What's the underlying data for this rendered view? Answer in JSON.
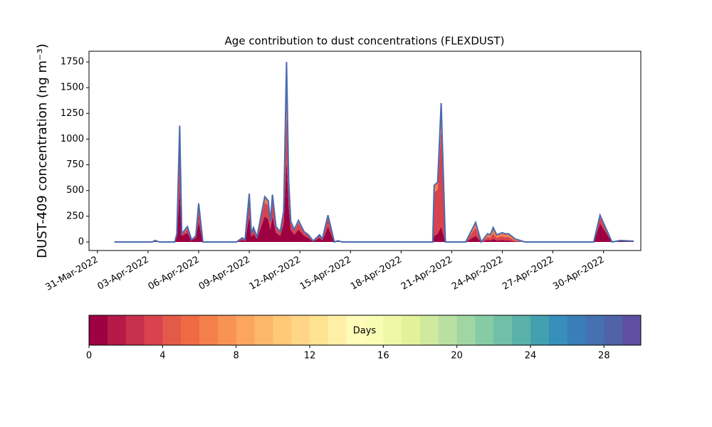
{
  "chart_data": [
    {
      "type": "stacked-area",
      "title": "Age contribution to dust concentrations (FLEXDUST)",
      "y_label": "DUST-409 concentration (ng m⁻³)",
      "x": [
        "2022-04-01T00:00",
        "2022-04-03T06:00",
        "2022-04-03T10:00",
        "2022-04-03T16:00",
        "2022-04-04T14:00",
        "2022-04-04T17:00",
        "2022-04-04T21:00",
        "2022-04-05T00:00",
        "2022-04-05T08:00",
        "2022-04-05T14:00",
        "2022-04-05T20:00",
        "2022-04-06T00:00",
        "2022-04-06T06:00",
        "2022-04-08T06:00",
        "2022-04-08T14:00",
        "2022-04-08T18:00",
        "2022-04-09T00:00",
        "2022-04-09T03:00",
        "2022-04-09T06:00",
        "2022-04-09T11:00",
        "2022-04-09T22:00",
        "2022-04-10T03:00",
        "2022-04-10T06:00",
        "2022-04-10T09:00",
        "2022-04-10T14:00",
        "2022-04-10T20:00",
        "2022-04-11T01:00",
        "2022-04-11T05:00",
        "2022-04-11T08:00",
        "2022-04-11T11:00",
        "2022-04-11T16:00",
        "2022-04-11T22:00",
        "2022-04-12T06:00",
        "2022-04-12T12:00",
        "2022-04-12T19:00",
        "2022-04-13T04:00",
        "2022-04-13T08:00",
        "2022-04-13T16:00",
        "2022-04-14T01:00",
        "2022-04-14T06:00",
        "2022-04-14T12:00",
        "2022-04-19T21:00",
        "2022-04-19T23:00",
        "2022-04-20T04:00",
        "2022-04-20T09:00",
        "2022-04-20T15:00",
        "2022-04-21T20:00",
        "2022-04-22T10:00",
        "2022-04-22T18:00",
        "2022-04-23T03:00",
        "2022-04-23T07:00",
        "2022-04-23T11:00",
        "2022-04-23T16:00",
        "2022-04-24T00:00",
        "2022-04-24T04:00",
        "2022-04-24T09:00",
        "2022-04-24T18:00",
        "2022-04-25T08:00",
        "2022-04-29T10:00",
        "2022-04-29T19:00",
        "2022-04-30T12:00",
        "2022-05-01T00:00",
        "2022-05-01T19:00"
      ],
      "series": [
        {
          "color": "#9e0142",
          "values": [
            0,
            0,
            8,
            0,
            0,
            60,
            500,
            60,
            90,
            15,
            40,
            200,
            0,
            0,
            20,
            10,
            250,
            50,
            80,
            30,
            250,
            220,
            120,
            250,
            90,
            60,
            180,
            800,
            350,
            120,
            70,
            120,
            60,
            40,
            5,
            40,
            15,
            150,
            0,
            6,
            0,
            0,
            60,
            80,
            150,
            0,
            0,
            60,
            0,
            20,
            15,
            30,
            15,
            20,
            15,
            15,
            5,
            0,
            0,
            180,
            0,
            8,
            4
          ]
        },
        {
          "color": "#d8434e",
          "values": [
            0,
            0,
            5,
            0,
            0,
            15,
            400,
            15,
            40,
            4,
            15,
            120,
            0,
            0,
            15,
            8,
            150,
            25,
            45,
            15,
            140,
            130,
            60,
            150,
            45,
            30,
            90,
            450,
            180,
            60,
            35,
            65,
            30,
            22,
            4,
            22,
            10,
            80,
            0,
            4,
            0,
            0,
            420,
            430,
            950,
            0,
            0,
            80,
            0,
            30,
            25,
            50,
            25,
            35,
            30,
            30,
            10,
            0,
            0,
            60,
            0,
            5,
            3
          ]
        },
        {
          "color": "#f57f4b",
          "values": [
            0,
            0,
            2,
            0,
            0,
            5,
            230,
            5,
            20,
            1,
            5,
            55,
            0,
            0,
            5,
            2,
            70,
            5,
            15,
            5,
            50,
            50,
            20,
            60,
            15,
            10,
            30,
            500,
            70,
            20,
            15,
            25,
            10,
            8,
            1,
            8,
            5,
            30,
            0,
            2,
            0,
            0,
            70,
            70,
            250,
            0,
            0,
            50,
            0,
            30,
            30,
            60,
            30,
            35,
            35,
            35,
            15,
            0,
            0,
            20,
            0,
            2,
            1
          ]
        }
      ],
      "outline_color": "#4a6bb0",
      "xlim": [
        "2022-03-30T12:00",
        "2022-05-02T05:00"
      ],
      "xticks": [
        {
          "value": "2022-03-31T00:00",
          "label": "31-Mar-2022"
        },
        {
          "value": "2022-04-03T00:00",
          "label": "03-Apr-2022"
        },
        {
          "value": "2022-04-06T00:00",
          "label": "06-Apr-2022"
        },
        {
          "value": "2022-04-09T00:00",
          "label": "09-Apr-2022"
        },
        {
          "value": "2022-04-12T00:00",
          "label": "12-Apr-2022"
        },
        {
          "value": "2022-04-15T00:00",
          "label": "15-Apr-2022"
        },
        {
          "value": "2022-04-18T00:00",
          "label": "18-Apr-2022"
        },
        {
          "value": "2022-04-21T00:00",
          "label": "21-Apr-2022"
        },
        {
          "value": "2022-04-24T00:00",
          "label": "24-Apr-2022"
        },
        {
          "value": "2022-04-27T00:00",
          "label": "27-Apr-2022"
        },
        {
          "value": "2022-04-30T00:00",
          "label": "30-Apr-2022"
        }
      ],
      "ylim": [
        -83,
        1854
      ],
      "yticks": [
        0,
        250,
        500,
        750,
        1000,
        1250,
        1500,
        1750
      ]
    },
    {
      "type": "colorbar",
      "label": "Days",
      "colors": [
        "#9e0142",
        "#b41947",
        "#c7304b",
        "#d8434e",
        "#e45a49",
        "#ee6b45",
        "#f57f4b",
        "#f99355",
        "#fca55f",
        "#fdb76a",
        "#fec877",
        "#fed685",
        "#fee391",
        "#fff0a6",
        "#fffbb9",
        "#f9fcb5",
        "#eff8a6",
        "#e2f29a",
        "#cfea9e",
        "#b8e0a2",
        "#9fd6a4",
        "#85cca5",
        "#6fc0a7",
        "#59b1a9",
        "#44a0b0",
        "#3790bb",
        "#3a7eb8",
        "#4570b1",
        "#5063a8",
        "#5e4fa2"
      ],
      "xlim": [
        0,
        30
      ],
      "xticks": [
        0,
        4,
        8,
        12,
        16,
        20,
        24,
        28
      ]
    }
  ]
}
